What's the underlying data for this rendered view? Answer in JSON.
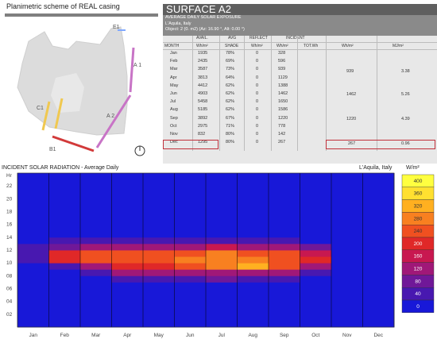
{
  "scheme": {
    "title": "Planimetric scheme of REAL casing",
    "labels": {
      "e1": "E1",
      "a1": "A 1",
      "c1": "C1",
      "a2": "A 2",
      "b1": "B1"
    }
  },
  "panel": {
    "title": "SURFACE A2",
    "subtitle": "AVERAGE DAILY SOLAR EXPOSURE",
    "location": "L'Aquila, Italy",
    "object": "Object:  2  (0. m2) (Az:  16.90 °, Alt:  0.00 °)",
    "headers": {
      "month": "MONTH",
      "avail": "AVAIL.",
      "avail_unit": "Wh/m²",
      "avg": "AVG",
      "shade": "SHADE",
      "reflect": "REFLECT",
      "reflect_unit": "Wh/m²",
      "incident": "INCIDENT",
      "incident_unit": "Wh/m²",
      "tot": "TOT.Wh",
      "season_wh": "Wh/m²",
      "season_mj": "MJ/m²"
    },
    "rows": [
      {
        "month": "Jan",
        "avail": "1935",
        "shade": "78%",
        "reflect": "0",
        "incident": "328"
      },
      {
        "month": "Feb",
        "avail": "2435",
        "shade": "69%",
        "reflect": "0",
        "incident": "596"
      },
      {
        "month": "Mar",
        "avail": "3587",
        "shade": "73%",
        "reflect": "0",
        "incident": "939"
      },
      {
        "month": "Apr",
        "avail": "3813",
        "shade": "64%",
        "reflect": "0",
        "incident": "1129"
      },
      {
        "month": "May",
        "avail": "4412",
        "shade": "62%",
        "reflect": "0",
        "incident": "1388"
      },
      {
        "month": "Jun",
        "avail": "4903",
        "shade": "62%",
        "reflect": "0",
        "incident": "1462"
      },
      {
        "month": "Jul",
        "avail": "5458",
        "shade": "62%",
        "reflect": "0",
        "incident": "1650"
      },
      {
        "month": "Aug",
        "avail": "5185",
        "shade": "62%",
        "reflect": "0",
        "incident": "1586"
      },
      {
        "month": "Sep",
        "avail": "3892",
        "shade": "67%",
        "reflect": "0",
        "incident": "1220"
      },
      {
        "month": "Oct",
        "avail": "2975",
        "shade": "71%",
        "reflect": "0",
        "incident": "778"
      },
      {
        "month": "Nov",
        "avail": "832",
        "shade": "80%",
        "reflect": "0",
        "incident": "142"
      },
      {
        "month": "Dec",
        "avail": "1295",
        "shade": "80%",
        "reflect": "0",
        "incident": "267"
      }
    ],
    "seasonal": [
      {
        "wh": "939",
        "mj": "3.38"
      },
      {
        "wh": "1462",
        "mj": "5.26"
      },
      {
        "wh": "1220",
        "mj": "4.39"
      },
      {
        "wh": "267",
        "mj": "0.96"
      }
    ]
  },
  "chart_data": {
    "type": "heatmap",
    "title": "INCIDENT SOLAR RADIATION - Average Daily",
    "location": "L'Aquila, Italy",
    "unit": "W/m²",
    "ylabel": "Hr",
    "y_ticks": [
      "22",
      "20",
      "18",
      "16",
      "14",
      "12",
      "10",
      "08",
      "06",
      "04",
      "02"
    ],
    "months": [
      "Jan",
      "Feb",
      "Mar",
      "Apr",
      "May",
      "Jun",
      "Jul",
      "Aug",
      "Sep",
      "Oct",
      "Nov",
      "Dec"
    ],
    "legend_ticks": [
      "400",
      "360",
      "320",
      "280",
      "240",
      "200",
      "160",
      "120",
      "80",
      "40",
      "0"
    ],
    "hours": [
      0,
      1,
      2,
      3,
      4,
      5,
      6,
      7,
      8,
      9,
      10,
      11,
      12,
      13,
      14,
      15,
      16,
      17,
      18,
      19,
      20,
      21,
      22,
      23
    ],
    "values": [
      [
        0,
        0,
        0,
        0,
        0,
        0,
        0,
        0,
        0,
        25,
        40,
        60,
        45,
        25,
        0,
        0,
        0,
        0,
        0,
        0,
        0,
        0,
        0,
        0
      ],
      [
        0,
        0,
        0,
        0,
        0,
        0,
        0,
        0,
        10,
        60,
        210,
        220,
        95,
        40,
        0,
        0,
        0,
        0,
        0,
        0,
        0,
        0,
        0,
        0
      ],
      [
        0,
        0,
        0,
        0,
        0,
        0,
        0,
        10,
        60,
        150,
        250,
        255,
        150,
        60,
        10,
        0,
        0,
        0,
        0,
        0,
        0,
        0,
        0,
        0
      ],
      [
        0,
        0,
        0,
        0,
        0,
        0,
        10,
        60,
        120,
        200,
        250,
        245,
        140,
        60,
        20,
        0,
        0,
        0,
        0,
        0,
        0,
        0,
        0,
        0
      ],
      [
        0,
        0,
        0,
        0,
        0,
        0,
        30,
        70,
        130,
        230,
        270,
        250,
        150,
        60,
        20,
        0,
        0,
        0,
        0,
        0,
        0,
        0,
        0,
        0
      ],
      [
        0,
        0,
        0,
        0,
        0,
        0,
        30,
        75,
        140,
        260,
        290,
        260,
        150,
        60,
        25,
        0,
        0,
        0,
        0,
        0,
        0,
        0,
        0,
        0
      ],
      [
        0,
        0,
        0,
        0,
        0,
        0,
        30,
        80,
        145,
        290,
        310,
        280,
        160,
        60,
        25,
        0,
        0,
        0,
        0,
        0,
        0,
        0,
        0,
        0
      ],
      [
        0,
        0,
        0,
        0,
        0,
        0,
        20,
        70,
        140,
        330,
        300,
        270,
        155,
        60,
        20,
        0,
        0,
        0,
        0,
        0,
        0,
        0,
        0,
        0
      ],
      [
        0,
        0,
        0,
        0,
        0,
        0,
        10,
        60,
        120,
        270,
        270,
        255,
        140,
        55,
        15,
        0,
        0,
        0,
        0,
        0,
        0,
        0,
        0,
        0
      ],
      [
        0,
        0,
        0,
        0,
        0,
        0,
        0,
        20,
        60,
        150,
        200,
        190,
        90,
        30,
        0,
        0,
        0,
        0,
        0,
        0,
        0,
        0,
        0,
        0
      ],
      [
        0,
        0,
        0,
        0,
        0,
        0,
        0,
        0,
        10,
        20,
        30,
        30,
        20,
        10,
        0,
        0,
        0,
        0,
        0,
        0,
        0,
        0,
        0,
        0
      ],
      [
        0,
        0,
        0,
        0,
        0,
        0,
        0,
        0,
        0,
        10,
        20,
        25,
        15,
        0,
        0,
        0,
        0,
        0,
        0,
        0,
        0,
        0,
        0,
        0
      ]
    ],
    "colors": [
      "#1818d8",
      "#4818b0",
      "#701898",
      "#a01878",
      "#c81850",
      "#e02828",
      "#f05020",
      "#f88020",
      "#ffb020",
      "#ffe030",
      "#ffff40"
    ]
  }
}
